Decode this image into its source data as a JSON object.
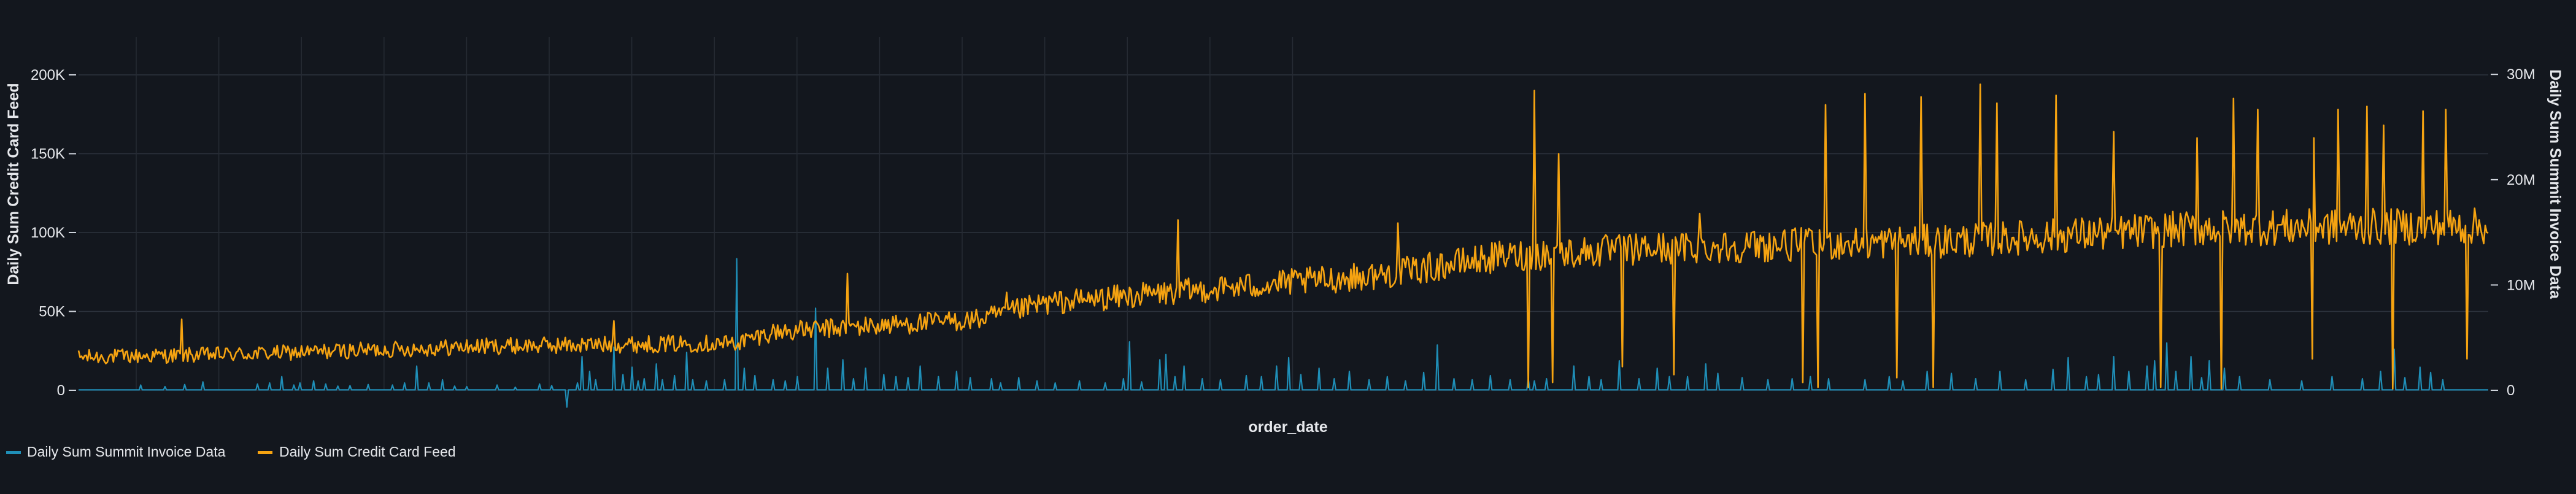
{
  "chart_data": {
    "type": "line",
    "xlabel": "order_date",
    "y_left": {
      "label": "Daily Sum Credit Card Feed",
      "ticks": [
        0,
        50000,
        100000,
        150000,
        200000
      ],
      "tick_labels": [
        "0",
        "50K",
        "100K",
        "150K",
        "200K"
      ],
      "range": [
        0,
        235000
      ]
    },
    "y_right": {
      "label": "Daily Sum Summit Invoice Data",
      "ticks": [
        0,
        10000000,
        20000000,
        30000000
      ],
      "tick_labels": [
        "0",
        "10M",
        "20M",
        "30M"
      ],
      "range": [
        0,
        35200000
      ]
    },
    "x_days": 1590,
    "grid": true,
    "legend_position": "bottom-left",
    "series": [
      {
        "name": "Daily Sum Summit Invoice Data",
        "axis": "right",
        "color": "#1f8fb8",
        "baseline": 40000,
        "spikes": [
          [
            30,
            1000000
          ],
          [
            50,
            450000
          ],
          [
            90,
            1500000
          ],
          [
            110,
            700000
          ],
          [
            230,
            500000
          ],
          [
            270,
            350000
          ],
          [
            300,
            550000
          ],
          [
            330,
            800000
          ],
          [
            420,
            600000
          ],
          [
            440,
            700000
          ],
          [
            460,
            1300000
          ],
          [
            480,
            500000
          ],
          [
            490,
            700000
          ],
          [
            510,
            900000
          ],
          [
            530,
            600000
          ],
          [
            550,
            400000
          ],
          [
            570,
            450000
          ],
          [
            600,
            550000
          ],
          [
            640,
            500000
          ],
          [
            660,
            700000
          ],
          [
            680,
            2300000
          ],
          [
            700,
            700000
          ],
          [
            720,
            1000000
          ],
          [
            740,
            400000
          ],
          [
            760,
            350000
          ],
          [
            810,
            500000
          ],
          [
            840,
            300000
          ],
          [
            880,
            600000
          ],
          [
            900,
            450000
          ],
          [
            923,
            -1600000
          ],
          [
            940,
            700000
          ],
          [
            948,
            3200000
          ],
          [
            962,
            1800000
          ],
          [
            970,
            1000000
          ],
          [
            1000,
            4100000
          ],
          [
            1015,
            1500000
          ],
          [
            1030,
            2200000
          ],
          [
            1040,
            900000
          ],
          [
            1050,
            1100000
          ],
          [
            1070,
            2500000
          ],
          [
            1080,
            1000000
          ],
          [
            1100,
            1400000
          ],
          [
            1120,
            3600000
          ],
          [
            1130,
            1000000
          ],
          [
            1150,
            900000
          ],
          [
            1180,
            1000000
          ],
          [
            1200,
            12500000
          ],
          [
            1213,
            2100000
          ],
          [
            1230,
            1400000
          ],
          [
            1260,
            1000000
          ],
          [
            1280,
            900000
          ],
          [
            1300,
            1300000
          ],
          [
            1330,
            7800000
          ],
          [
            1350,
            2100000
          ],
          [
            1373,
            2900000
          ],
          [
            1390,
            1100000
          ],
          [
            1410,
            2100000
          ],
          [
            1440,
            1500000
          ],
          [
            1460,
            1300000
          ],
          [
            1480,
            1200000
          ],
          [
            1500,
            2300000
          ],
          [
            1530,
            1300000
          ],
          [
            1560,
            1800000
          ],
          [
            1580,
            1200000
          ],
          [
            1615,
            1100000
          ],
          [
            1630,
            700000
          ],
          [
            1660,
            1200000
          ],
          [
            1690,
            900000
          ],
          [
            1720,
            700000
          ],
          [
            1760,
            900000
          ],
          [
            1800,
            700000
          ],
          [
            1830,
            1100000
          ],
          [
            1840,
            4600000
          ],
          [
            1860,
            800000
          ],
          [
            1890,
            2900000
          ],
          [
            1900,
            3400000
          ],
          [
            1915,
            1300000
          ],
          [
            1930,
            2300000
          ],
          [
            1960,
            1100000
          ],
          [
            1990,
            1000000
          ],
          [
            2030,
            1400000
          ],
          [
            2055,
            1300000
          ],
          [
            2080,
            2300000
          ],
          [
            2100,
            3100000
          ],
          [
            2120,
            1500000
          ],
          [
            2150,
            2100000
          ],
          [
            2175,
            1100000
          ],
          [
            2200,
            1800000
          ],
          [
            2230,
            1000000
          ],
          [
            2260,
            1300000
          ],
          [
            2290,
            900000
          ],
          [
            2320,
            1700000
          ],
          [
            2343,
            4300000
          ],
          [
            2370,
            1100000
          ],
          [
            2400,
            1000000
          ],
          [
            2430,
            1400000
          ],
          [
            2460,
            1000000
          ],
          [
            2490,
            1100000
          ],
          [
            2500,
            900000
          ],
          [
            2520,
            1100000
          ],
          [
            2565,
            2300000
          ],
          [
            2590,
            1300000
          ],
          [
            2610,
            1000000
          ],
          [
            2640,
            2800000
          ],
          [
            2670,
            1100000
          ],
          [
            2700,
            2100000
          ],
          [
            2720,
            1300000
          ],
          [
            2750,
            1300000
          ],
          [
            2780,
            2500000
          ],
          [
            2800,
            1600000
          ],
          [
            2840,
            1200000
          ],
          [
            2880,
            1000000
          ],
          [
            2920,
            1100000
          ],
          [
            2950,
            1300000
          ],
          [
            2980,
            1100000
          ],
          [
            3040,
            1000000
          ],
          [
            3080,
            1300000
          ],
          [
            3100,
            900000
          ],
          [
            3140,
            1800000
          ],
          [
            3180,
            1600000
          ],
          [
            3220,
            1100000
          ],
          [
            3260,
            1800000
          ],
          [
            3300,
            1000000
          ],
          [
            3346,
            2000000
          ],
          [
            3370,
            3100000
          ],
          [
            3399,
            1300000
          ],
          [
            3420,
            1500000
          ],
          [
            3445,
            3200000
          ],
          [
            3470,
            1800000
          ],
          [
            3500,
            2300000
          ],
          [
            3512,
            2800000
          ],
          [
            3530,
            4500000
          ],
          [
            3545,
            1800000
          ],
          [
            3570,
            3200000
          ],
          [
            3588,
            1200000
          ],
          [
            3600,
            2800000
          ],
          [
            3626,
            2100000
          ],
          [
            3650,
            1300000
          ],
          [
            3700,
            1000000
          ],
          [
            3750,
            900000
          ],
          [
            3800,
            1300000
          ],
          [
            3850,
            1100000
          ],
          [
            3880,
            1800000
          ],
          [
            3902,
            3900000
          ],
          [
            3918,
            1200000
          ],
          [
            3945,
            2200000
          ],
          [
            3960,
            1700000
          ],
          [
            3980,
            1000000
          ]
        ]
      },
      {
        "name": "Daily Sum Credit Card Feed",
        "axis": "left",
        "color": "#f5a311",
        "generator": "daily values with upward trend, noise and spikes",
        "trend": [
          [
            0,
            20000
          ],
          [
            400,
            23000
          ],
          [
            800,
            28000
          ],
          [
            1200,
            30000
          ],
          [
            1260,
            37000
          ],
          [
            1600,
            45000
          ],
          [
            1700,
            55000
          ],
          [
            2000,
            65000
          ],
          [
            2250,
            73000
          ],
          [
            2450,
            85000
          ],
          [
            2700,
            90000
          ],
          [
            3200,
            95000
          ],
          [
            3600,
            103000
          ],
          [
            4030,
            104000
          ]
        ],
        "noise_amplitude": 5000,
        "spikes_up": [
          [
            295,
            45000
          ],
          [
            1000,
            44000
          ],
          [
            1380,
            74000
          ],
          [
            1640,
            62000
          ],
          [
            1920,
            108000
          ],
          [
            2278,
            106000
          ],
          [
            2500,
            190000
          ],
          [
            2540,
            150000
          ],
          [
            2770,
            112000
          ],
          [
            2938,
            208000
          ],
          [
            2975,
            181000
          ],
          [
            3040,
            188000
          ],
          [
            3130,
            186000
          ],
          [
            3228,
            194000
          ],
          [
            3255,
            182000
          ],
          [
            3350,
            187000
          ],
          [
            3445,
            164000
          ],
          [
            3520,
            159000
          ],
          [
            3580,
            160000
          ],
          [
            3620,
            161000
          ],
          [
            3640,
            185000
          ],
          [
            3680,
            178000
          ],
          [
            3770,
            160000
          ],
          [
            3810,
            178000
          ],
          [
            3857,
            180000
          ],
          [
            3885,
            168000
          ],
          [
            3948,
            177000
          ],
          [
            3987,
            178000
          ]
        ],
        "spikes_down": [
          [
            2490,
            2000
          ],
          [
            2530,
            5000
          ],
          [
            2645,
            15000
          ],
          [
            2728,
            10000
          ],
          [
            2938,
            5000
          ],
          [
            2963,
            2000
          ],
          [
            3090,
            8000
          ],
          [
            3150,
            2000
          ],
          [
            3520,
            2000
          ],
          [
            3620,
            1000
          ],
          [
            3768,
            20000
          ],
          [
            3900,
            1000
          ],
          [
            4020,
            20000
          ]
        ]
      }
    ]
  },
  "legend": {
    "items": [
      {
        "label": "Daily Sum Summit Invoice Data",
        "color": "#1f8fb8"
      },
      {
        "label": "Daily Sum Credit Card Feed",
        "color": "#f5a311"
      }
    ]
  }
}
